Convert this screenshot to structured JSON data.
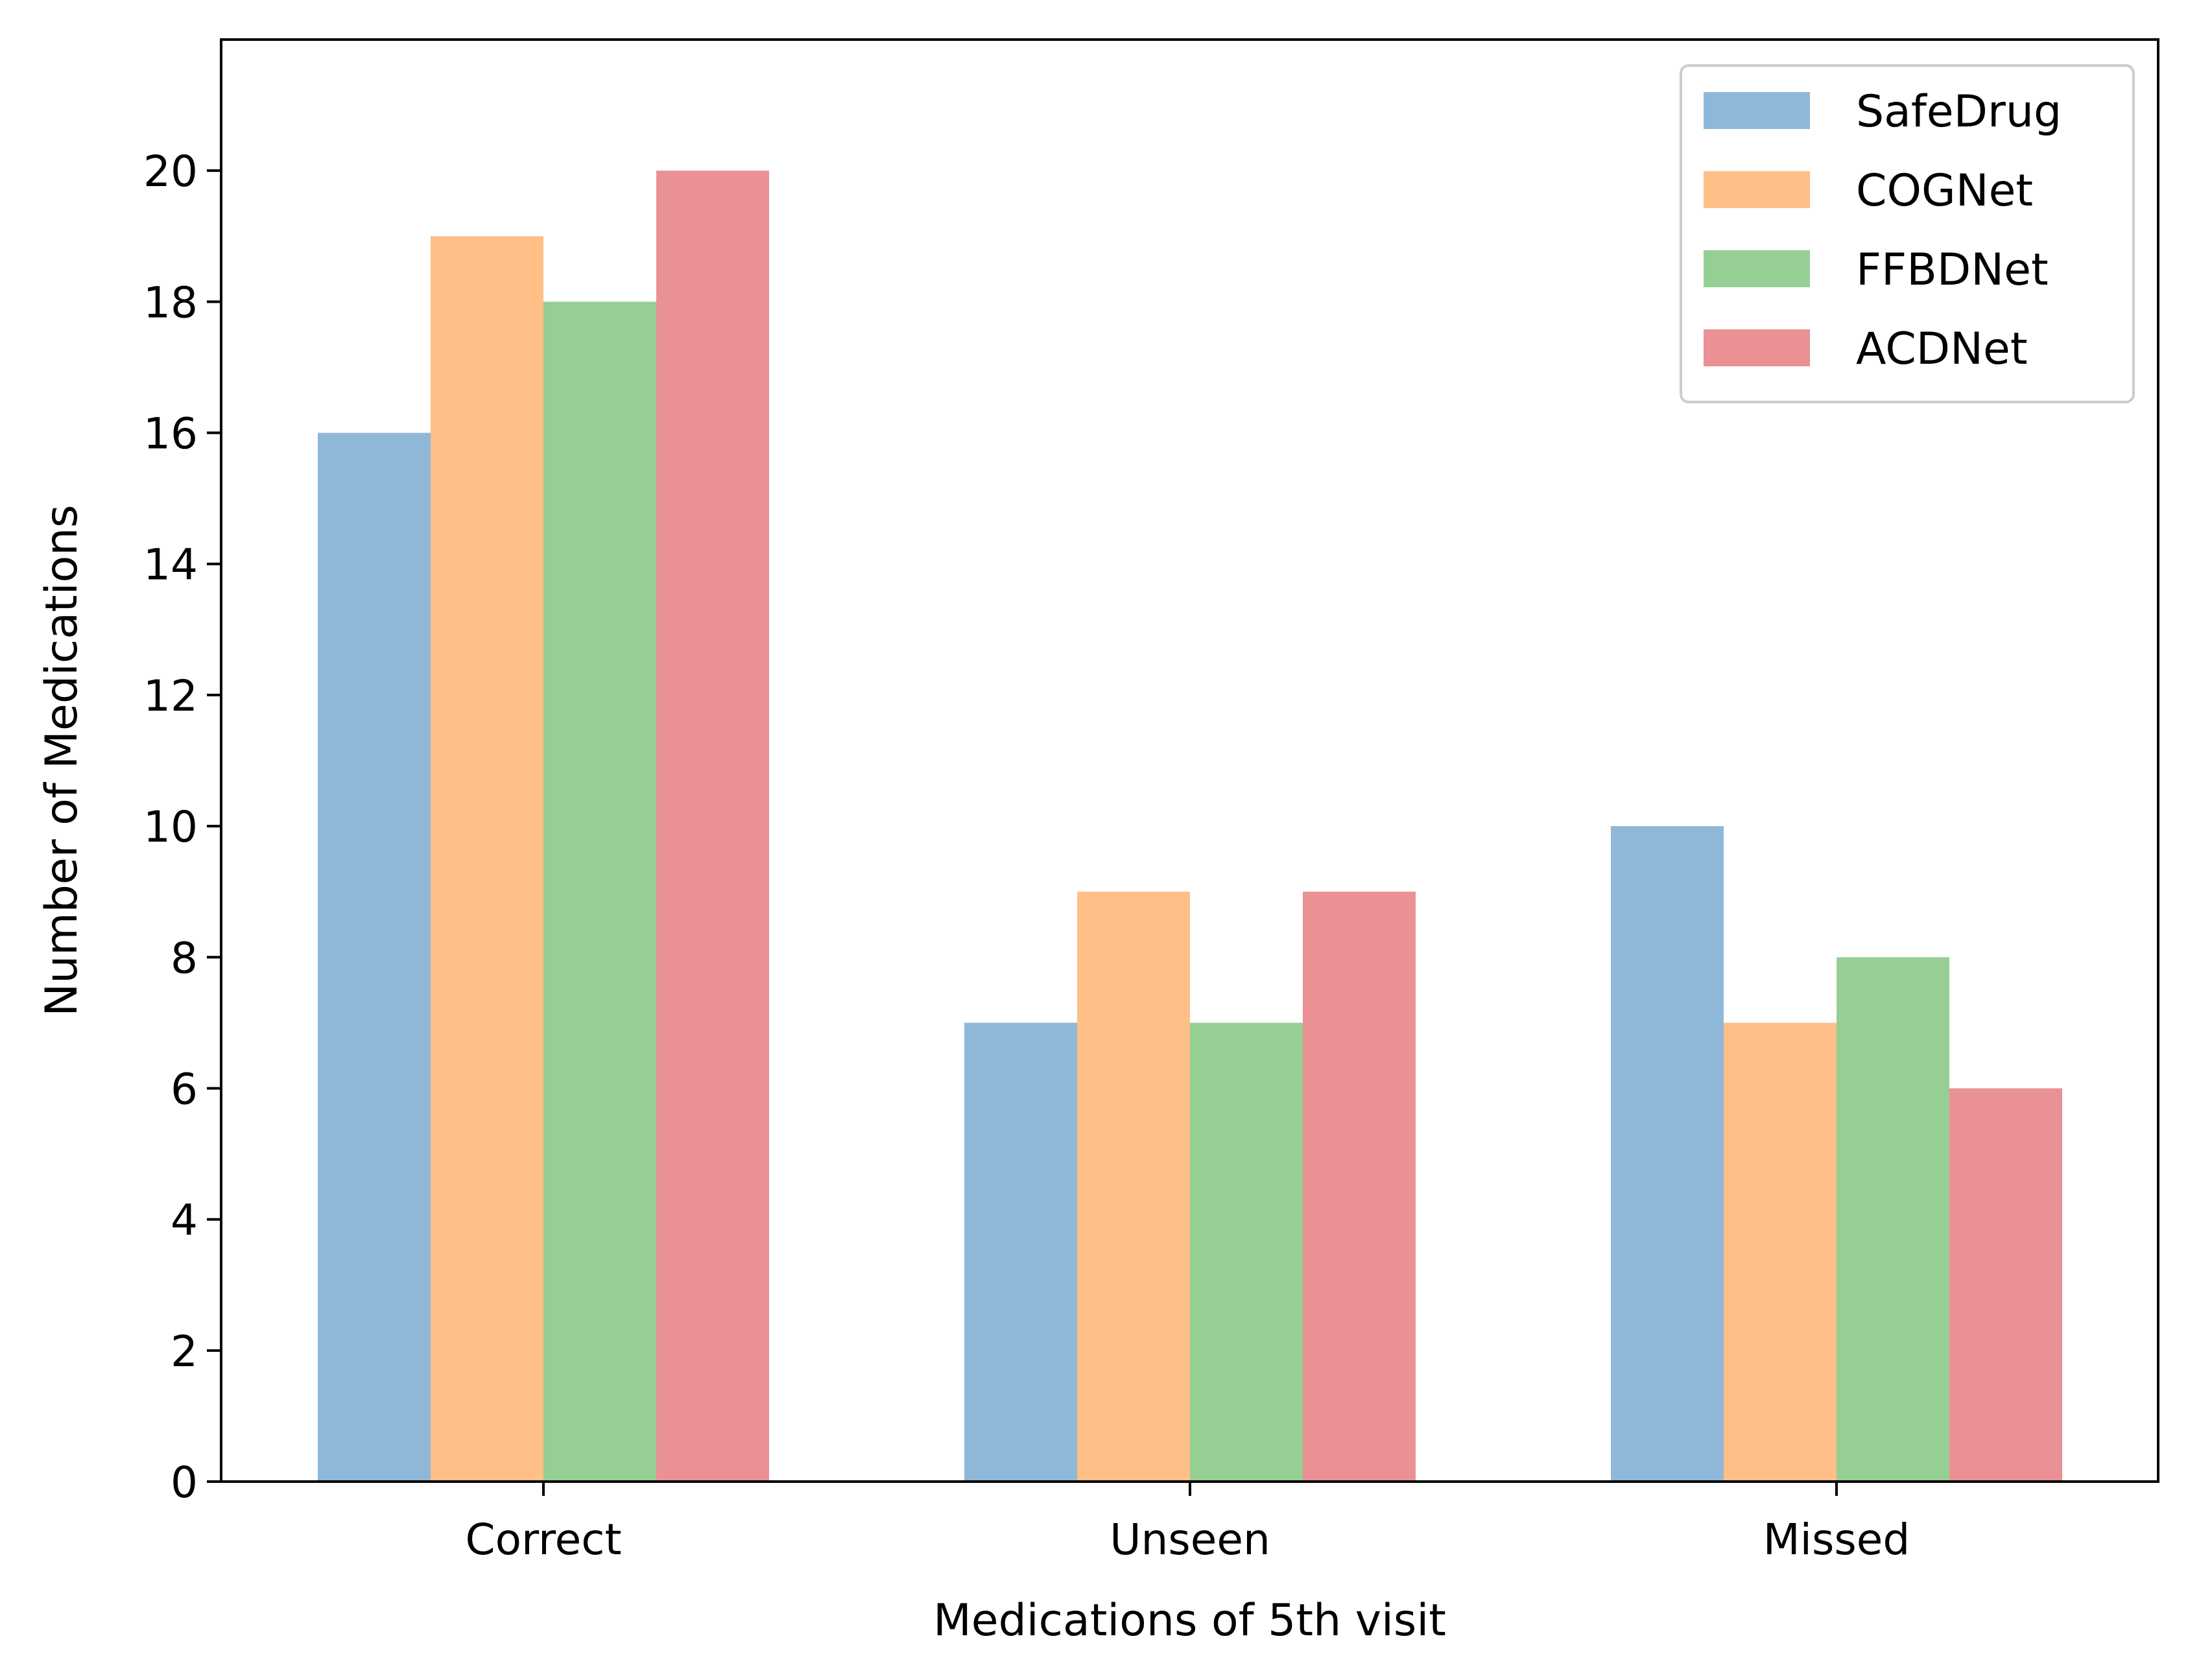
{
  "chart_data": {
    "type": "bar",
    "title": "",
    "xlabel": "Medications of 5th visit",
    "ylabel": "Number of Medications",
    "categories": [
      "Correct",
      "Unseen",
      "Missed"
    ],
    "ylim": [
      0,
      22
    ],
    "yticks": [
      0,
      2,
      4,
      6,
      8,
      10,
      12,
      14,
      16,
      18,
      20
    ],
    "grid": false,
    "legend_position": "top-right",
    "series": [
      {
        "name": "SafeDrug",
        "color": "#8FB8D8",
        "values": [
          16,
          7,
          10
        ]
      },
      {
        "name": "COGNet",
        "color": "#FFBF87",
        "values": [
          19,
          9,
          7
        ]
      },
      {
        "name": "FFBDNet",
        "color": "#96CF94",
        "values": [
          18,
          7,
          8
        ]
      },
      {
        "name": "ACDNet",
        "color": "#E99194",
        "values": [
          20,
          9,
          6
        ]
      }
    ]
  }
}
